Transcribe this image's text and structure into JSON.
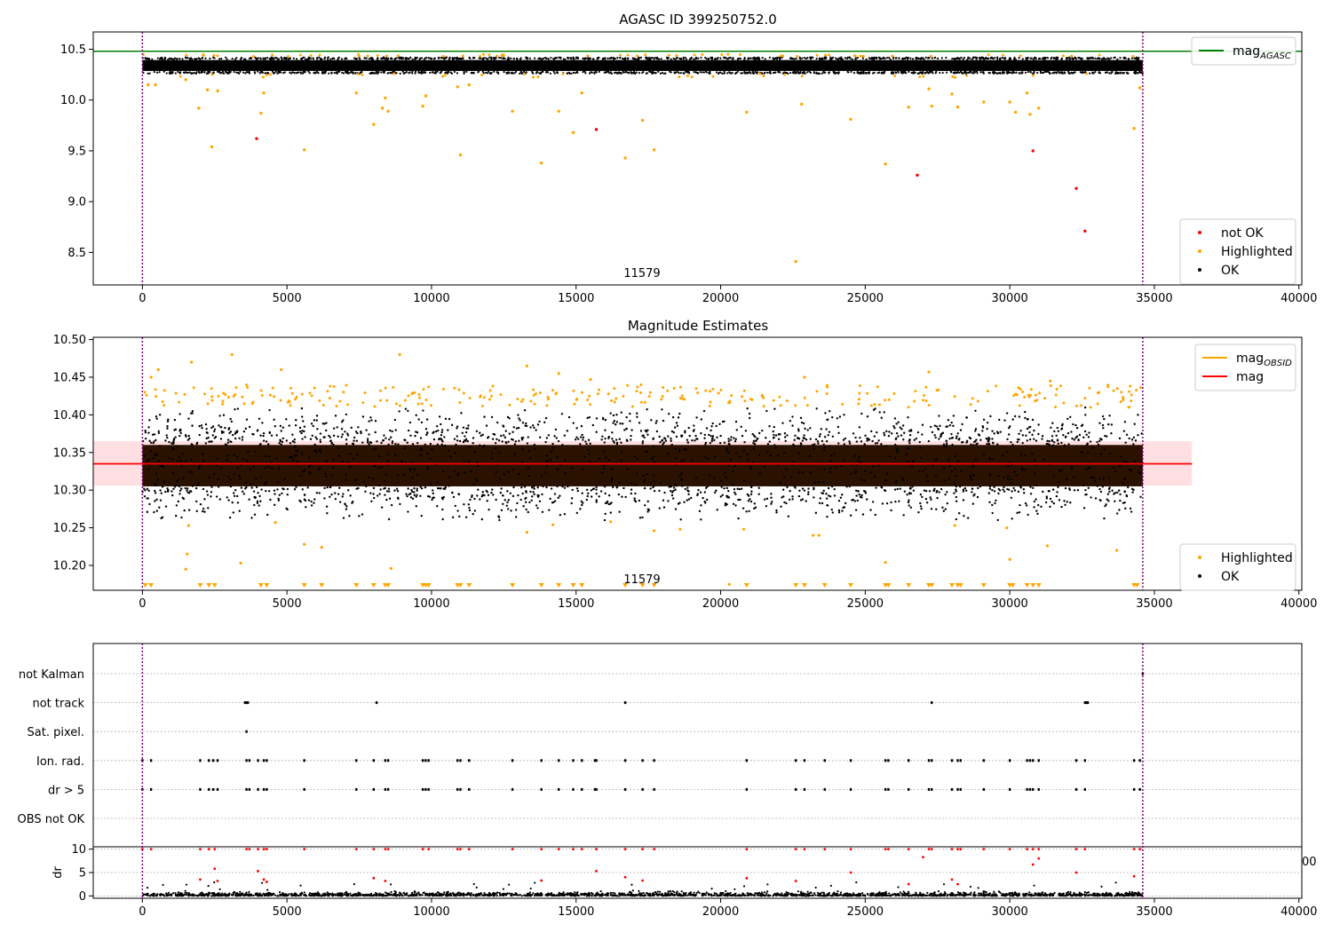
{
  "chart_data": [
    {
      "type": "scatter",
      "title": "AGASC ID 399250752.0",
      "annotation": "11579",
      "xlim": [
        -1700,
        40100
      ],
      "ylim": [
        8.18,
        10.67
      ],
      "x_ticks": [
        0,
        5000,
        10000,
        15000,
        20000,
        25000,
        30000,
        35000,
        40000
      ],
      "y_ticks": [
        8.5,
        9.0,
        9.5,
        10.0,
        10.5
      ],
      "y_tick_labels": [
        "8.5",
        "9.0",
        "9.5",
        "10.0",
        "10.5"
      ],
      "vlines": [
        0,
        34600
      ],
      "hlines": [
        {
          "name": "mag_AGASC",
          "y": 10.48,
          "color": "#008000"
        }
      ],
      "band": {
        "y": [
          10.26,
          10.42
        ],
        "color": "#000000"
      },
      "legends": [
        {
          "position": "upper right",
          "entries": [
            {
              "main": "mag",
              "sub": "AGASC",
              "kind": "line",
              "color": "#008000"
            }
          ]
        },
        {
          "position": "lower right",
          "entries": [
            {
              "label": "not OK",
              "kind": "dot",
              "color": "#ff0000"
            },
            {
              "label": "Highlighted",
              "kind": "dot",
              "color": "#ffa500"
            },
            {
              "label": "OK",
              "kind": "dot",
              "color": "#000000"
            }
          ]
        }
      ],
      "series": [
        {
          "name": "not OK",
          "color": "#ff0000",
          "points": [
            [
              3950,
              9.62
            ],
            [
              15700,
              9.71
            ],
            [
              26800,
              9.26
            ],
            [
              30800,
              9.5
            ],
            [
              32300,
              9.13
            ],
            [
              32600,
              8.71
            ]
          ]
        },
        {
          "name": "Highlighted",
          "color": "#ffa500",
          "points": [
            [
              200,
              10.15
            ],
            [
              450,
              10.15
            ],
            [
              1500,
              10.2
            ],
            [
              1950,
              9.92
            ],
            [
              2250,
              10.1
            ],
            [
              2400,
              9.54
            ],
            [
              2600,
              10.09
            ],
            [
              4100,
              9.87
            ],
            [
              4200,
              10.07
            ],
            [
              5600,
              9.51
            ],
            [
              7400,
              10.07
            ],
            [
              8000,
              9.76
            ],
            [
              8300,
              9.92
            ],
            [
              8400,
              10.02
            ],
            [
              8500,
              9.89
            ],
            [
              9700,
              9.94
            ],
            [
              9800,
              10.04
            ],
            [
              10900,
              10.13
            ],
            [
              11000,
              9.46
            ],
            [
              11300,
              10.15
            ],
            [
              12800,
              9.89
            ],
            [
              13800,
              9.38
            ],
            [
              14400,
              9.89
            ],
            [
              14900,
              9.68
            ],
            [
              15200,
              10.07
            ],
            [
              16700,
              9.43
            ],
            [
              17300,
              9.8
            ],
            [
              17700,
              9.51
            ],
            [
              20900,
              9.88
            ],
            [
              22600,
              8.41
            ],
            [
              22800,
              9.96
            ],
            [
              24500,
              9.81
            ],
            [
              25700,
              9.37
            ],
            [
              26500,
              9.93
            ],
            [
              27200,
              10.11
            ],
            [
              27300,
              9.94
            ],
            [
              28000,
              10.06
            ],
            [
              28200,
              9.93
            ],
            [
              29100,
              9.98
            ],
            [
              30000,
              9.98
            ],
            [
              30200,
              9.88
            ],
            [
              30600,
              10.07
            ],
            [
              30700,
              9.86
            ],
            [
              31000,
              9.92
            ],
            [
              34300,
              9.72
            ],
            [
              34500,
              10.12
            ]
          ]
        }
      ]
    },
    {
      "type": "scatter",
      "title": "Magnitude Estimates",
      "annotation": "11579",
      "xlim": [
        -1700,
        40100
      ],
      "ylim": [
        10.167,
        10.503
      ],
      "x_ticks": [
        0,
        5000,
        10000,
        15000,
        20000,
        25000,
        30000,
        35000,
        40000
      ],
      "y_ticks": [
        10.2,
        10.25,
        10.3,
        10.35,
        10.4,
        10.45,
        10.5
      ],
      "y_tick_labels": [
        "10.20",
        "10.25",
        "10.30",
        "10.35",
        "10.40",
        "10.45",
        "10.50"
      ],
      "vlines": [
        0,
        34600
      ],
      "mag": 10.335,
      "mag_band": [
        10.306,
        10.365
      ],
      "mag_band_color": "#ffc0c5",
      "dense_band": [
        10.305,
        10.36
      ],
      "dense_band_color": "#2b1200",
      "legends": [
        {
          "position": "upper right",
          "entries": [
            {
              "main": "mag",
              "sub": "OBSID",
              "kind": "line",
              "color": "#ffa500"
            },
            {
              "label": "mag",
              "kind": "line",
              "color": "#ff0000"
            }
          ]
        },
        {
          "position": "lower right",
          "entries": [
            {
              "label": "Highlighted",
              "kind": "dot",
              "color": "#ffa500"
            },
            {
              "label": "OK",
              "kind": "dot",
              "color": "#000000"
            }
          ]
        }
      ],
      "series": [
        {
          "name": "Highlighted",
          "color": "#ffa500",
          "points": [
            [
              300,
              10.45
            ],
            [
              550,
              10.46
            ],
            [
              1700,
              10.47
            ],
            [
              3100,
              10.48
            ],
            [
              4800,
              10.46
            ],
            [
              8900,
              10.48
            ],
            [
              13300,
              10.465
            ],
            [
              14400,
              10.455
            ],
            [
              15500,
              10.447
            ],
            [
              22900,
              10.45
            ],
            [
              27200,
              10.457
            ],
            [
              31400,
              10.445
            ],
            [
              1600,
              10.253
            ],
            [
              1550,
              10.215
            ],
            [
              1500,
              10.195
            ],
            [
              3400,
              10.203
            ],
            [
              4600,
              10.257
            ],
            [
              5600,
              10.228
            ],
            [
              6200,
              10.224
            ],
            [
              8600,
              10.196
            ],
            [
              13300,
              10.244
            ],
            [
              14200,
              10.254
            ],
            [
              16200,
              10.258
            ],
            [
              17700,
              10.246
            ],
            [
              18600,
              10.248
            ],
            [
              20800,
              10.248
            ],
            [
              23200,
              10.24
            ],
            [
              23400,
              10.24
            ],
            [
              25700,
              10.204
            ],
            [
              28100,
              10.253
            ],
            [
              29900,
              10.25
            ],
            [
              30000,
              10.208
            ],
            [
              31300,
              10.226
            ],
            [
              33700,
              10.22
            ],
            [
              20300,
              10.175
            ]
          ]
        }
      ],
      "markers_at_bottom": [
        100,
        300,
        2000,
        2300,
        2500,
        4100,
        4300,
        5600,
        6200,
        7400,
        8000,
        8400,
        8500,
        9700,
        9800,
        9900,
        10900,
        11000,
        11300,
        12800,
        13800,
        14400,
        14900,
        15200,
        16700,
        17300,
        17700,
        20900,
        22600,
        22900,
        23600,
        24500,
        25700,
        25800,
        26500,
        27200,
        27300,
        28000,
        28200,
        28300,
        29100,
        30000,
        30100,
        30600,
        30800,
        31000,
        34300,
        34400
      ]
    },
    {
      "type": "scatter",
      "title": "",
      "xlim": [
        -1700,
        40100
      ],
      "categories": [
        "not Kalman",
        "not track",
        "Sat. pixel.",
        "Ion. rad.",
        "dr > 5",
        "OBS not OK"
      ],
      "x_ticks": [
        0,
        5000,
        10000,
        15000,
        20000,
        25000,
        30000,
        35000,
        40000
      ],
      "right_fragment": "00",
      "vlines": [
        0,
        34600
      ],
      "flag_events": {
        "not Kalman": [
          34600
        ],
        "not track": [
          3550,
          3600,
          3650,
          8100,
          16700,
          27300,
          32600,
          32650,
          32700
        ],
        "Sat. pixel.": [
          3600
        ],
        "Ion. rad.": [
          0,
          300,
          2000,
          2300,
          2450,
          2600,
          3600,
          3700,
          4000,
          4200,
          4300,
          5600,
          7400,
          8000,
          8400,
          8500,
          9700,
          9800,
          9900,
          10900,
          11000,
          11300,
          12800,
          13800,
          14400,
          14900,
          15200,
          15650,
          15700,
          16700,
          17300,
          17700,
          20900,
          22600,
          22900,
          23600,
          24500,
          25700,
          25800,
          26500,
          27200,
          27300,
          28000,
          28200,
          28300,
          29100,
          30000,
          30600,
          30700,
          30800,
          31000,
          32300,
          32600,
          34300,
          34500
        ],
        "dr > 5": [
          0,
          300,
          2000,
          2300,
          2450,
          2600,
          3600,
          3700,
          4000,
          4200,
          4300,
          5600,
          7400,
          8000,
          8400,
          8500,
          9700,
          9800,
          9900,
          10900,
          11000,
          11300,
          12800,
          13800,
          14400,
          14900,
          15200,
          15650,
          15700,
          16700,
          17300,
          17700,
          20900,
          22600,
          22900,
          23600,
          24500,
          25700,
          25800,
          26500,
          27200,
          27300,
          28000,
          28200,
          28300,
          29100,
          30000,
          30600,
          30700,
          30800,
          31000,
          32300,
          32600,
          34300,
          34500
        ],
        "OBS not OK": []
      },
      "dr": {
        "ylabel": "dr",
        "ylim": [
          -0.5,
          10.5
        ],
        "y_ticks": [
          0,
          5,
          10
        ],
        "ok_color": "#000000",
        "flag_color": "#ff0000",
        "flag_points": [
          [
            0,
            10
          ],
          [
            300,
            10
          ],
          [
            2000,
            10
          ],
          [
            2300,
            10
          ],
          [
            2500,
            10
          ],
          [
            3600,
            10
          ],
          [
            3700,
            10
          ],
          [
            4000,
            10
          ],
          [
            4200,
            10
          ],
          [
            4300,
            10
          ],
          [
            5600,
            10
          ],
          [
            7400,
            10
          ],
          [
            8000,
            10
          ],
          [
            8400,
            10
          ],
          [
            8500,
            10
          ],
          [
            9700,
            10
          ],
          [
            9900,
            10
          ],
          [
            10900,
            10
          ],
          [
            11000,
            10
          ],
          [
            11300,
            10
          ],
          [
            12800,
            10
          ],
          [
            13800,
            10
          ],
          [
            14400,
            10
          ],
          [
            14900,
            10
          ],
          [
            15200,
            10
          ],
          [
            15700,
            10
          ],
          [
            16700,
            10
          ],
          [
            17300,
            10
          ],
          [
            17700,
            10
          ],
          [
            20900,
            10
          ],
          [
            22600,
            10
          ],
          [
            22900,
            10
          ],
          [
            23600,
            10
          ],
          [
            24500,
            10
          ],
          [
            25700,
            10
          ],
          [
            25800,
            10
          ],
          [
            26500,
            10
          ],
          [
            27200,
            10
          ],
          [
            27300,
            10
          ],
          [
            28000,
            10
          ],
          [
            28200,
            10
          ],
          [
            28300,
            10
          ],
          [
            29100,
            10
          ],
          [
            30000,
            10
          ],
          [
            30600,
            10
          ],
          [
            30800,
            10
          ],
          [
            31000,
            10
          ],
          [
            32300,
            10
          ],
          [
            32600,
            10
          ],
          [
            34300,
            10
          ],
          [
            34500,
            10
          ],
          [
            2000,
            3.5
          ],
          [
            2500,
            5.8
          ],
          [
            2600,
            3.2
          ],
          [
            4000,
            5.3
          ],
          [
            4200,
            3.5
          ],
          [
            4300,
            3.0
          ],
          [
            8000,
            3.8
          ],
          [
            8400,
            3.2
          ],
          [
            13800,
            3.3
          ],
          [
            15700,
            5.3
          ],
          [
            16700,
            4.0
          ],
          [
            17300,
            3.3
          ],
          [
            20900,
            3.8
          ],
          [
            22600,
            3.2
          ],
          [
            24500,
            5.0
          ],
          [
            26500,
            2.5
          ],
          [
            27000,
            8.3
          ],
          [
            28000,
            3.5
          ],
          [
            28200,
            2.5
          ],
          [
            30800,
            6.7
          ],
          [
            31000,
            8.0
          ],
          [
            32300,
            5.0
          ],
          [
            34300,
            4.2
          ]
        ]
      }
    }
  ]
}
